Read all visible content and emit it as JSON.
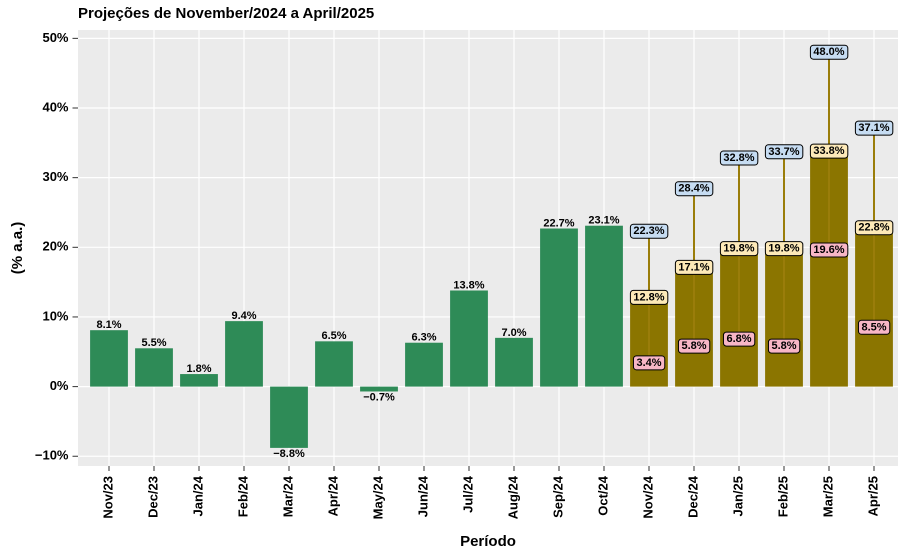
{
  "chart_data": {
    "type": "bar",
    "title": "Projeções de November/2024 a April/2025",
    "x_label": "Período",
    "y_label": "(% a.a.)",
    "categories": [
      "Nov/23",
      "Dec/23",
      "Jan/24",
      "Feb/24",
      "Mar/24",
      "Apr/24",
      "May/24",
      "Jun/24",
      "Jul/24",
      "Aug/24",
      "Sep/24",
      "Oct/24",
      "Nov/24",
      "Dec/24",
      "Jan/25",
      "Feb/25",
      "Mar/25",
      "Apr/25"
    ],
    "values": [
      8.1,
      5.5,
      1.8,
      9.4,
      -8.8,
      6.5,
      -0.7,
      6.3,
      13.8,
      7.0,
      22.7,
      23.1,
      null,
      null,
      null,
      null,
      null,
      null
    ],
    "value_labels": [
      "8.1%",
      "5.5%",
      "1.8%",
      "9.4%",
      "−8.8%",
      "6.5%",
      "−0.7%",
      "6.3%",
      "13.8%",
      "7.0%",
      "22.7%",
      "23.1%",
      null,
      null,
      null,
      null,
      null,
      null
    ],
    "color": "#2e8b57",
    "projection": {
      "color": "#8b7500",
      "range_color": "#9a7d0a",
      "median": [
        null,
        null,
        null,
        null,
        null,
        null,
        null,
        null,
        null,
        null,
        null,
        null,
        12.8,
        17.1,
        19.8,
        19.8,
        33.8,
        22.8
      ],
      "median_labels": [
        null,
        null,
        null,
        null,
        null,
        null,
        null,
        null,
        null,
        null,
        null,
        null,
        "12.8%",
        "17.1%",
        "19.8%",
        "19.8%",
        "33.8%",
        "22.8%"
      ],
      "median_color": "#fde9b8",
      "low": [
        null,
        null,
        null,
        null,
        null,
        null,
        null,
        null,
        null,
        null,
        null,
        null,
        3.4,
        5.8,
        6.8,
        5.8,
        19.6,
        8.5
      ],
      "low_labels": [
        null,
        null,
        null,
        null,
        null,
        null,
        null,
        null,
        null,
        null,
        null,
        null,
        "3.4%",
        "5.8%",
        "6.8%",
        "5.8%",
        "19.6%",
        "8.5%"
      ],
      "low_color": "#f7b6c6",
      "high": [
        null,
        null,
        null,
        null,
        null,
        null,
        null,
        null,
        null,
        null,
        null,
        null,
        22.3,
        28.4,
        32.8,
        33.7,
        48.0,
        37.1
      ],
      "high_labels": [
        null,
        null,
        null,
        null,
        null,
        null,
        null,
        null,
        null,
        null,
        null,
        null,
        "22.3%",
        "28.4%",
        "32.8%",
        "33.7%",
        "48.0%",
        "37.1%"
      ],
      "high_color": "#c6dcf2"
    },
    "ylim": [
      -11.4,
      51.2
    ],
    "yticks": [
      {
        "value": -10,
        "label": "−10%"
      },
      {
        "value": 0,
        "label": "0%"
      },
      {
        "value": 10,
        "label": "10%"
      },
      {
        "value": 20,
        "label": "20%"
      },
      {
        "value": 30,
        "label": "30%"
      },
      {
        "value": 40,
        "label": "40%"
      },
      {
        "value": 50,
        "label": "50%"
      }
    ],
    "grid": true
  }
}
